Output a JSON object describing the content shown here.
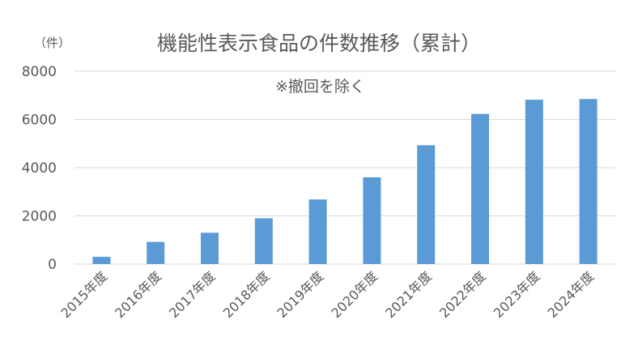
{
  "chart_data": {
    "type": "bar",
    "title": "機能性表示食品の件数推移（累計）",
    "annotation": "※撤回を除く",
    "y_unit": "（件）",
    "categories": [
      "2015年度",
      "2016年度",
      "2017年度",
      "2018年度",
      "2019年度",
      "2020年度",
      "2021年度",
      "2022年度",
      "2023年度",
      "2024年度"
    ],
    "values": [
      300,
      920,
      1300,
      1900,
      2680,
      3600,
      4930,
      6230,
      6820,
      6850
    ],
    "ylim": [
      0,
      8000
    ],
    "yticks": [
      0,
      2000,
      4000,
      6000,
      8000
    ],
    "grid": true,
    "legend": "none",
    "bar_color": "#5b9bd5"
  }
}
